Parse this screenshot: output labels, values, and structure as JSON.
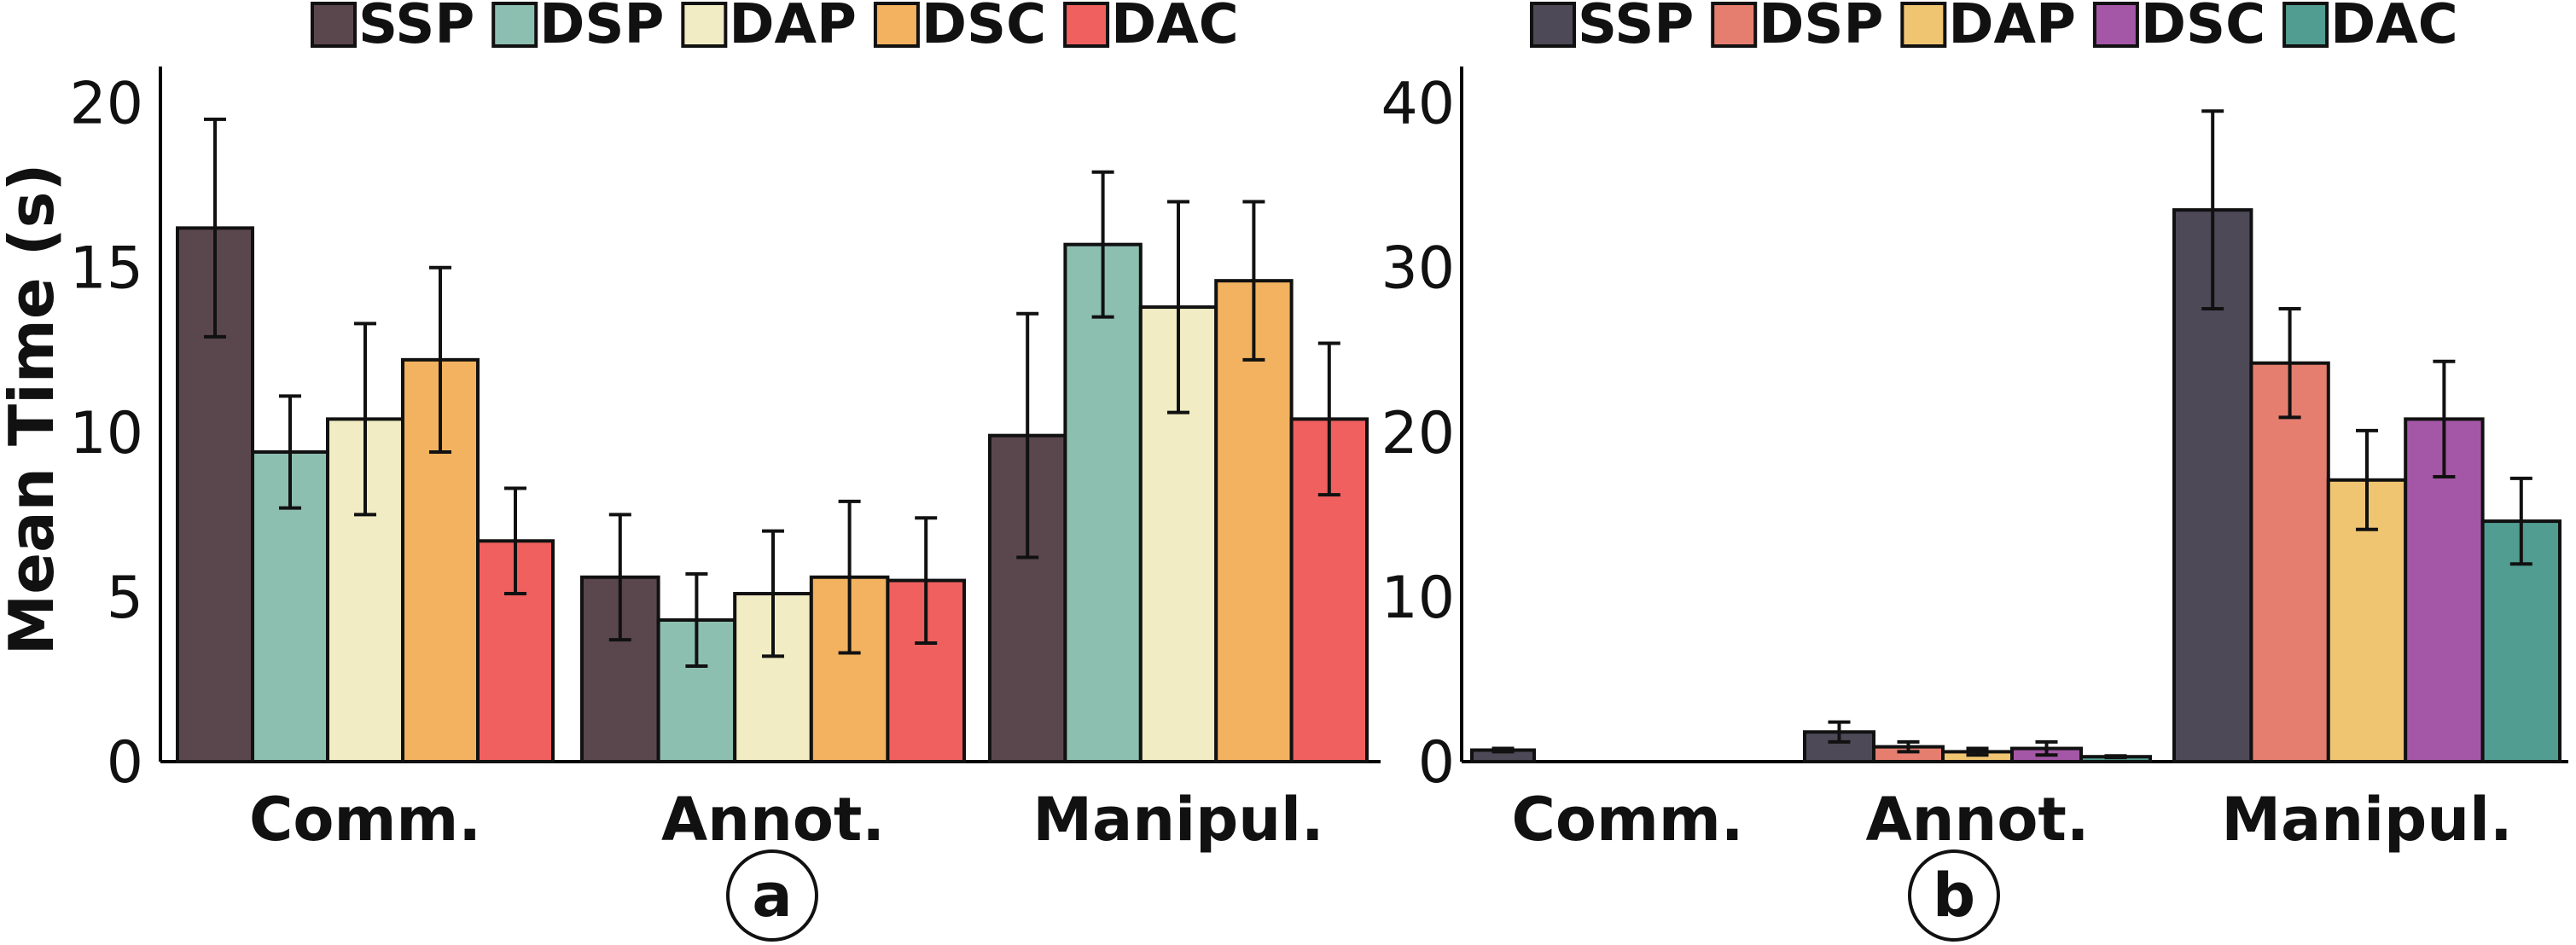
{
  "ylabel": "Mean Time (s)",
  "chart_data": [
    {
      "type": "bar",
      "panel_label": "a",
      "categories": [
        "Comm.",
        "Annot.",
        "Manipul."
      ],
      "ylabel": "Mean Time (s)",
      "ylim": [
        0,
        21
      ],
      "yticks": [
        0,
        5,
        10,
        15,
        20
      ],
      "legend_position": "top",
      "series": [
        {
          "name": "SSP",
          "color": "#5a474d",
          "values": [
            16.2,
            5.6,
            9.9
          ],
          "errors": [
            3.3,
            1.9,
            3.7
          ]
        },
        {
          "name": "DSP",
          "color": "#8dbfb1",
          "values": [
            9.4,
            4.3,
            15.7
          ],
          "errors": [
            1.7,
            1.4,
            2.2
          ]
        },
        {
          "name": "DAP",
          "color": "#f2ecc4",
          "values": [
            10.4,
            5.1,
            13.8
          ],
          "errors": [
            2.9,
            1.9,
            3.2
          ]
        },
        {
          "name": "DSC",
          "color": "#f2b25f",
          "values": [
            12.2,
            5.6,
            14.6
          ],
          "errors": [
            2.8,
            2.3,
            2.4
          ]
        },
        {
          "name": "DAC",
          "color": "#f0605f",
          "values": [
            6.7,
            5.5,
            10.4
          ],
          "errors": [
            1.6,
            1.9,
            2.3
          ]
        }
      ]
    },
    {
      "type": "bar",
      "panel_label": "b",
      "categories": [
        "Comm.",
        "Annot.",
        "Manipul."
      ],
      "ylabel": "",
      "ylim": [
        0,
        42
      ],
      "yticks": [
        0,
        10,
        20,
        30,
        40
      ],
      "legend_position": "top",
      "series": [
        {
          "name": "SSP",
          "color": "#4d4957",
          "values": [
            0.7,
            1.8,
            33.5
          ],
          "errors": [
            0.1,
            0.6,
            6.0
          ]
        },
        {
          "name": "DSP",
          "color": "#e57e6f",
          "values": [
            0,
            0.9,
            24.2
          ],
          "errors": [
            0,
            0.3,
            3.3
          ]
        },
        {
          "name": "DAP",
          "color": "#f0c572",
          "values": [
            0,
            0.6,
            17.1
          ],
          "errors": [
            0,
            0.2,
            3.0
          ]
        },
        {
          "name": "DSC",
          "color": "#a557a7",
          "values": [
            0,
            0.8,
            20.8
          ],
          "errors": [
            0,
            0.4,
            3.5
          ]
        },
        {
          "name": "DAC",
          "color": "#519d91",
          "values": [
            0,
            0.3,
            14.6
          ],
          "errors": [
            0,
            0.05,
            2.6
          ]
        }
      ]
    }
  ]
}
